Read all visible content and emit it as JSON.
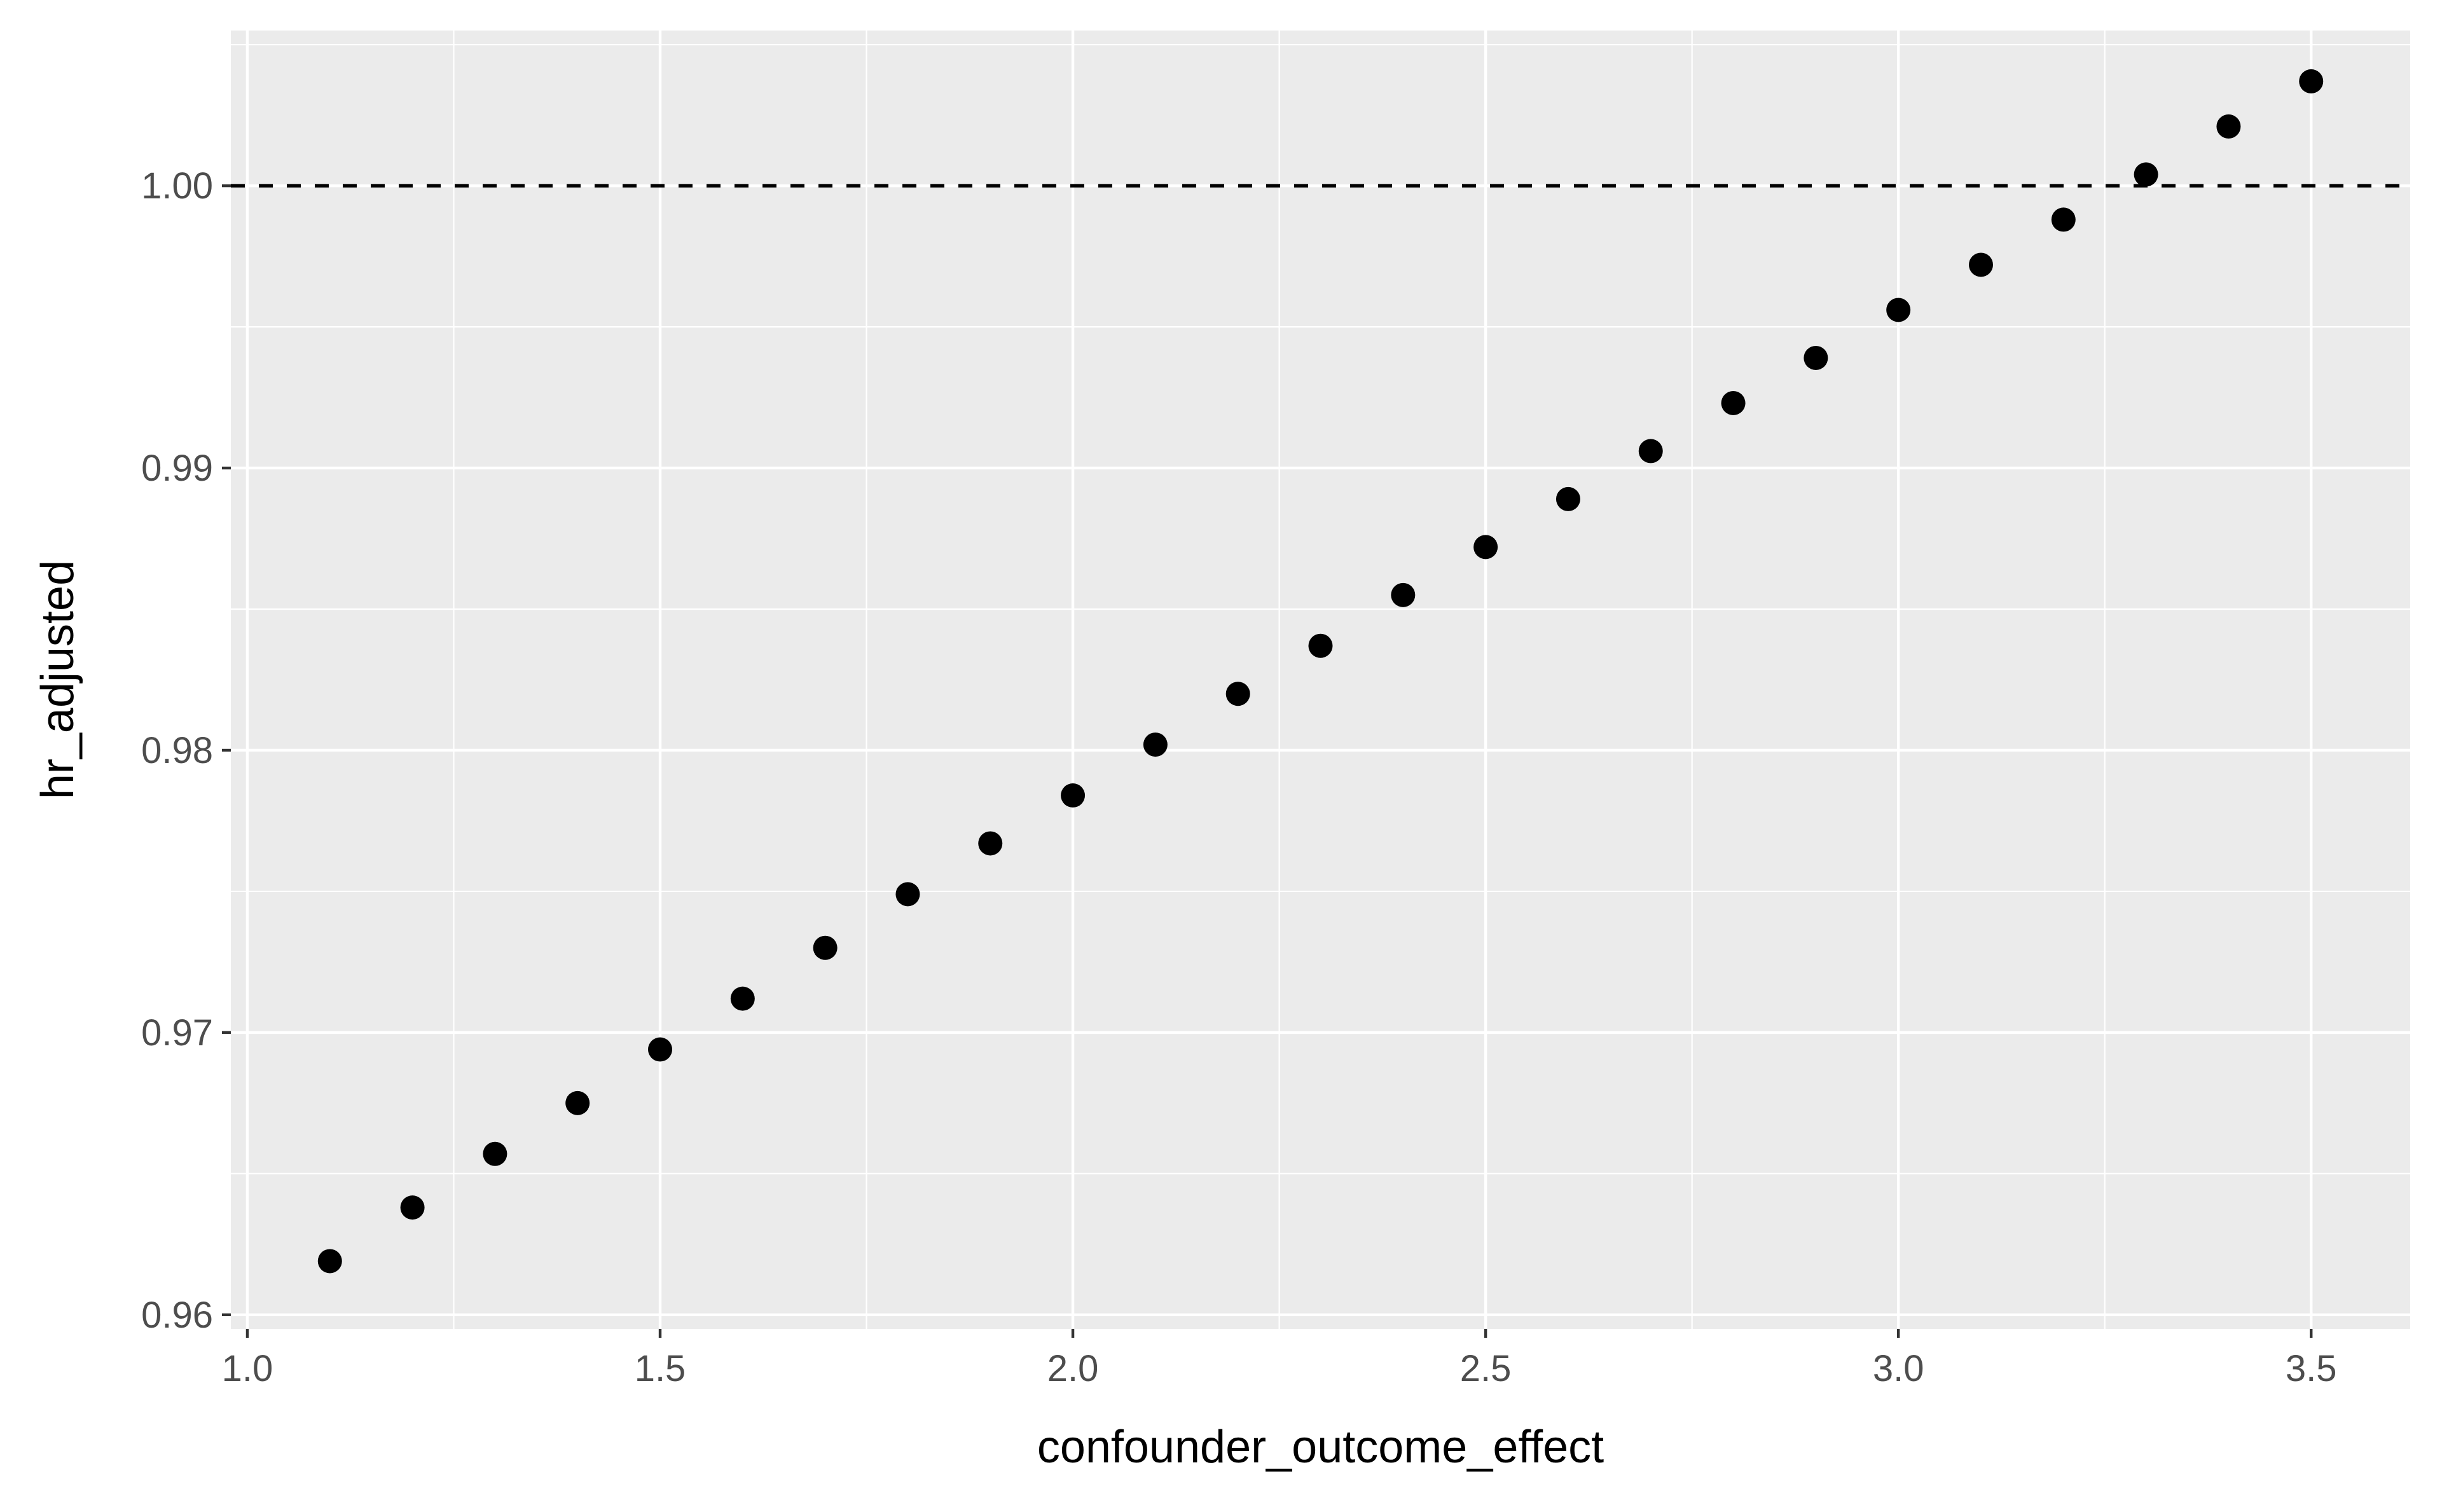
{
  "chart_data": {
    "type": "scatter",
    "title": "",
    "xlabel": "confounder_outcome_effect",
    "ylabel": "hr_adjusted",
    "xlim": [
      0.98,
      3.62
    ],
    "ylim": [
      0.9595,
      1.0055
    ],
    "x_ticks": [
      1.0,
      1.5,
      2.0,
      2.5,
      3.0,
      3.5
    ],
    "x_tick_labels": [
      "1.0",
      "1.5",
      "2.0",
      "2.5",
      "3.0",
      "3.5"
    ],
    "y_ticks": [
      0.96,
      0.97,
      0.98,
      0.99,
      1.0
    ],
    "y_tick_labels": [
      "0.96",
      "0.97",
      "0.98",
      "0.99",
      "1.00"
    ],
    "grid": true,
    "reference_line": {
      "y": 1.0,
      "style": "dashed",
      "color": "#000000"
    },
    "colors": {
      "panel_background": "#ebebeb",
      "grid": "#ffffff",
      "point": "#000000",
      "tick_label": "#4d4d4d",
      "axis_title": "#000000"
    },
    "x": [
      1.1,
      1.2,
      1.3,
      1.4,
      1.5,
      1.6,
      1.7,
      1.8,
      1.9,
      2.0,
      2.1,
      2.2,
      2.3,
      2.4,
      2.5,
      2.6,
      2.7,
      2.8,
      2.9,
      3.0,
      3.1,
      3.2,
      3.3,
      3.4,
      3.5
    ],
    "y": [
      0.9619,
      0.9638,
      0.9657,
      0.9675,
      0.9694,
      0.9712,
      0.973,
      0.9749,
      0.9767,
      0.9784,
      0.9802,
      0.982,
      0.9837,
      0.9855,
      0.9872,
      0.9889,
      0.9906,
      0.9923,
      0.9939,
      0.9956,
      0.9972,
      0.9988,
      1.0004,
      1.0021,
      1.0037
    ]
  }
}
